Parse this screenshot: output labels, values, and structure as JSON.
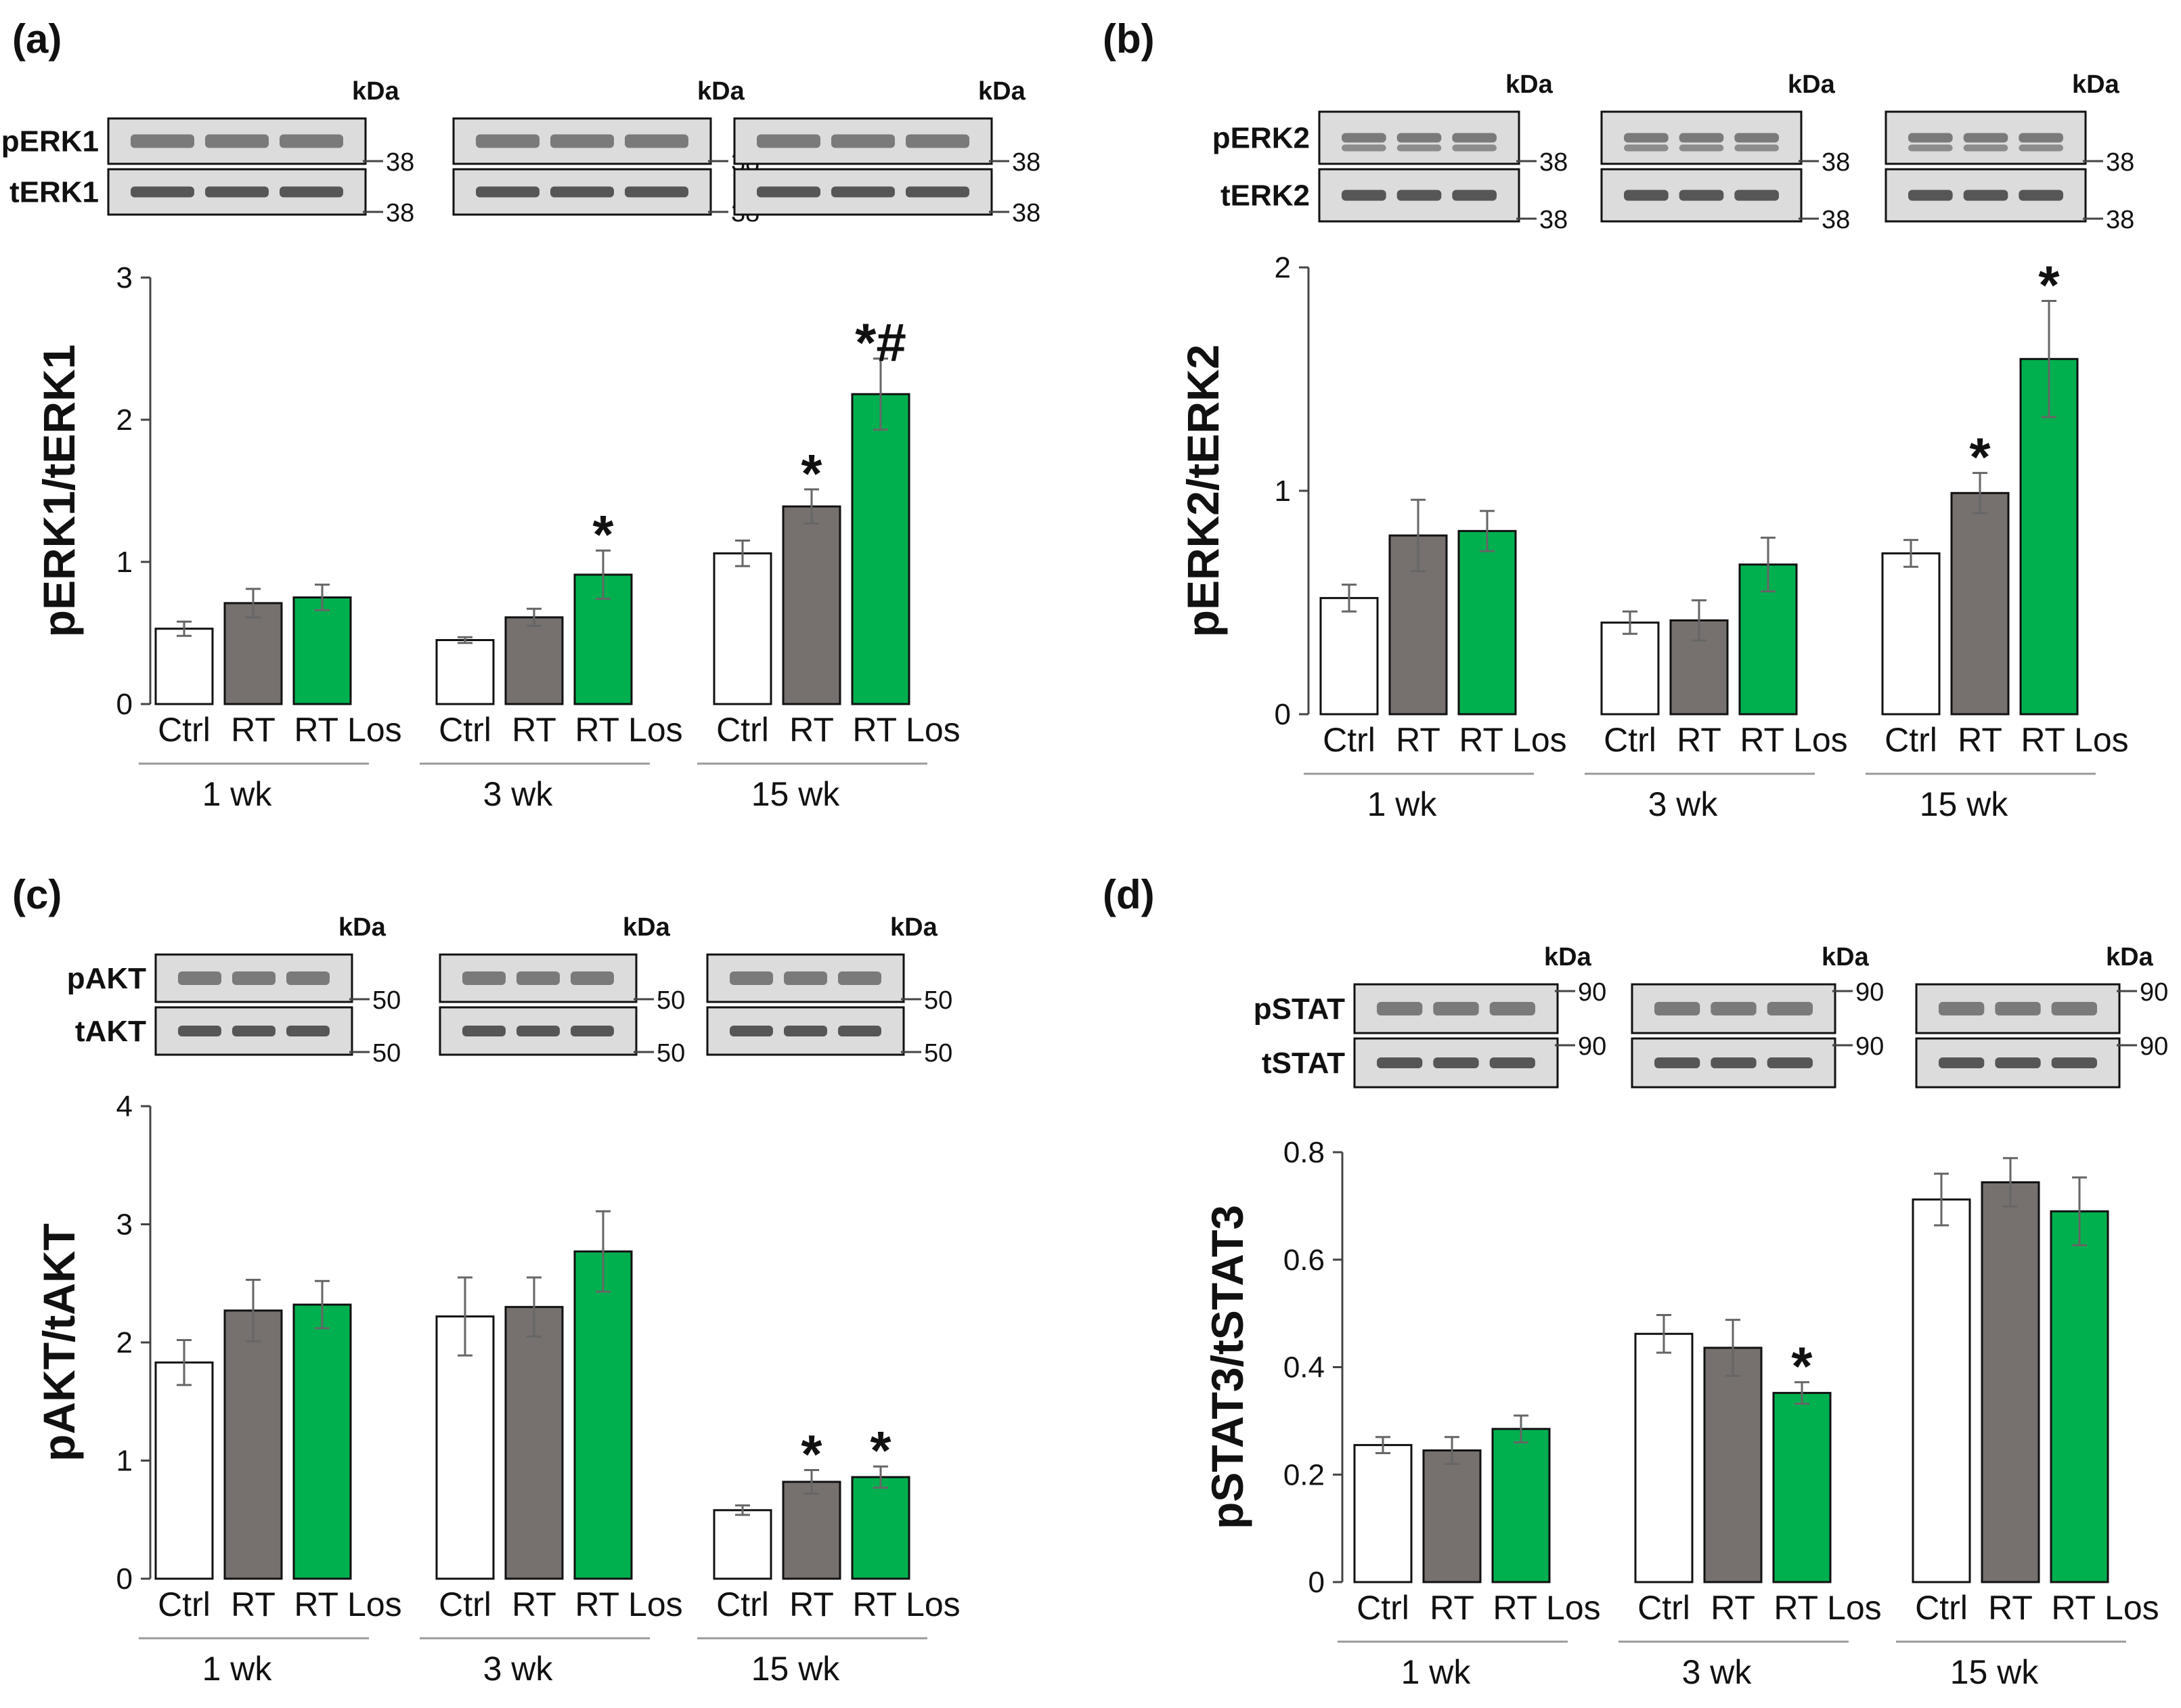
{
  "colors": {
    "ctrl": "#ffffff",
    "rt": "#76706e",
    "rt_los": "#00b04f"
  },
  "chart_data": [
    {
      "type": "bar",
      "panel_letter": "(a)",
      "title": "",
      "ylabel": "pERK1/tERK1",
      "xlabel": "",
      "ylim": [
        0,
        3
      ],
      "yticks": [
        "0",
        "1",
        "2",
        "3"
      ],
      "categories": [
        "Ctrl",
        "RT",
        "RT Los"
      ],
      "groups": [
        "1 wk",
        "3 wk",
        "15 wk"
      ],
      "series": [
        {
          "name": "Ctrl",
          "values": [
            0.53,
            0.45,
            1.06
          ],
          "errors": [
            0.05,
            0.02,
            0.09
          ]
        },
        {
          "name": "RT",
          "values": [
            0.71,
            0.61,
            1.39
          ],
          "errors": [
            0.1,
            0.06,
            0.12
          ]
        },
        {
          "name": "RT Los",
          "values": [
            0.75,
            0.91,
            2.18
          ],
          "errors": [
            0.09,
            0.17,
            0.25
          ]
        }
      ],
      "annotations": [
        {
          "group": 1,
          "series": 2,
          "text": "*"
        },
        {
          "group": 2,
          "series": 1,
          "text": "*"
        },
        {
          "group": 2,
          "series": 2,
          "text": "*#"
        }
      ],
      "blots": {
        "kda_label": "kDa",
        "rows": [
          {
            "label": "pERK1",
            "marker": "38"
          },
          {
            "label": "tERK1",
            "marker": "38"
          }
        ]
      }
    },
    {
      "type": "bar",
      "panel_letter": "(b)",
      "title": "",
      "ylabel": "pERK2/tERK2",
      "xlabel": "",
      "ylim": [
        0,
        2
      ],
      "yticks": [
        "0",
        "1",
        "2"
      ],
      "categories": [
        "Ctrl",
        "RT",
        "RT Los"
      ],
      "groups": [
        "1 wk",
        "3 wk",
        "15 wk"
      ],
      "series": [
        {
          "name": "Ctrl",
          "values": [
            0.52,
            0.41,
            0.72
          ],
          "errors": [
            0.06,
            0.05,
            0.06
          ]
        },
        {
          "name": "RT",
          "values": [
            0.8,
            0.42,
            0.99
          ],
          "errors": [
            0.16,
            0.09,
            0.09
          ]
        },
        {
          "name": "RT Los",
          "values": [
            0.82,
            0.67,
            1.59
          ],
          "errors": [
            0.09,
            0.12,
            0.26
          ]
        }
      ],
      "annotations": [
        {
          "group": 2,
          "series": 1,
          "text": "*"
        },
        {
          "group": 2,
          "series": 2,
          "text": "*"
        }
      ],
      "blots": {
        "kda_label": "kDa",
        "rows": [
          {
            "label": "pERK2",
            "marker": "38"
          },
          {
            "label": "tERK2",
            "marker": "38"
          }
        ]
      }
    },
    {
      "type": "bar",
      "panel_letter": "(c)",
      "title": "",
      "ylabel": "pAKT/tAKT",
      "xlabel": "",
      "ylim": [
        0,
        4
      ],
      "yticks": [
        "0",
        "1",
        "2",
        "3",
        "4"
      ],
      "categories": [
        "Ctrl",
        "RT",
        "RT Los"
      ],
      "groups": [
        "1 wk",
        "3 wk",
        "15 wk"
      ],
      "series": [
        {
          "name": "Ctrl",
          "values": [
            1.83,
            2.22,
            0.58
          ],
          "errors": [
            0.19,
            0.33,
            0.04
          ]
        },
        {
          "name": "RT",
          "values": [
            2.27,
            2.3,
            0.82
          ],
          "errors": [
            0.26,
            0.25,
            0.1
          ]
        },
        {
          "name": "RT Los",
          "values": [
            2.32,
            2.77,
            0.86
          ],
          "errors": [
            0.2,
            0.34,
            0.09
          ]
        }
      ],
      "annotations": [
        {
          "group": 2,
          "series": 1,
          "text": "*"
        },
        {
          "group": 2,
          "series": 2,
          "text": "*"
        }
      ],
      "blots": {
        "kda_label": "kDa",
        "rows": [
          {
            "label": "pAKT",
            "marker": "50"
          },
          {
            "label": "tAKT",
            "marker": "50"
          }
        ]
      }
    },
    {
      "type": "bar",
      "panel_letter": "(d)",
      "title": "",
      "ylabel": "pSTAT3/tSTAT3",
      "xlabel": "",
      "ylim": [
        0,
        0.8
      ],
      "yticks": [
        "0",
        "0.2",
        "0.4",
        "0.6",
        "0.8"
      ],
      "categories": [
        "Ctrl",
        "RT",
        "RT Los"
      ],
      "groups": [
        "1 wk",
        "3 wk",
        "15 wk"
      ],
      "series": [
        {
          "name": "Ctrl",
          "values": [
            0.255,
            0.462,
            0.712
          ],
          "errors": [
            0.015,
            0.035,
            0.048
          ]
        },
        {
          "name": "RT",
          "values": [
            0.245,
            0.436,
            0.744
          ],
          "errors": [
            0.025,
            0.052,
            0.045
          ]
        },
        {
          "name": "RT Los",
          "values": [
            0.285,
            0.352,
            0.69
          ],
          "errors": [
            0.025,
            0.02,
            0.063
          ]
        }
      ],
      "annotations": [
        {
          "group": 1,
          "series": 2,
          "text": "*"
        }
      ],
      "blots": {
        "kda_label": "kDa",
        "rows": [
          {
            "label": "pSTAT",
            "marker": "90"
          },
          {
            "label": "tSTAT",
            "marker": "90"
          }
        ]
      }
    }
  ]
}
